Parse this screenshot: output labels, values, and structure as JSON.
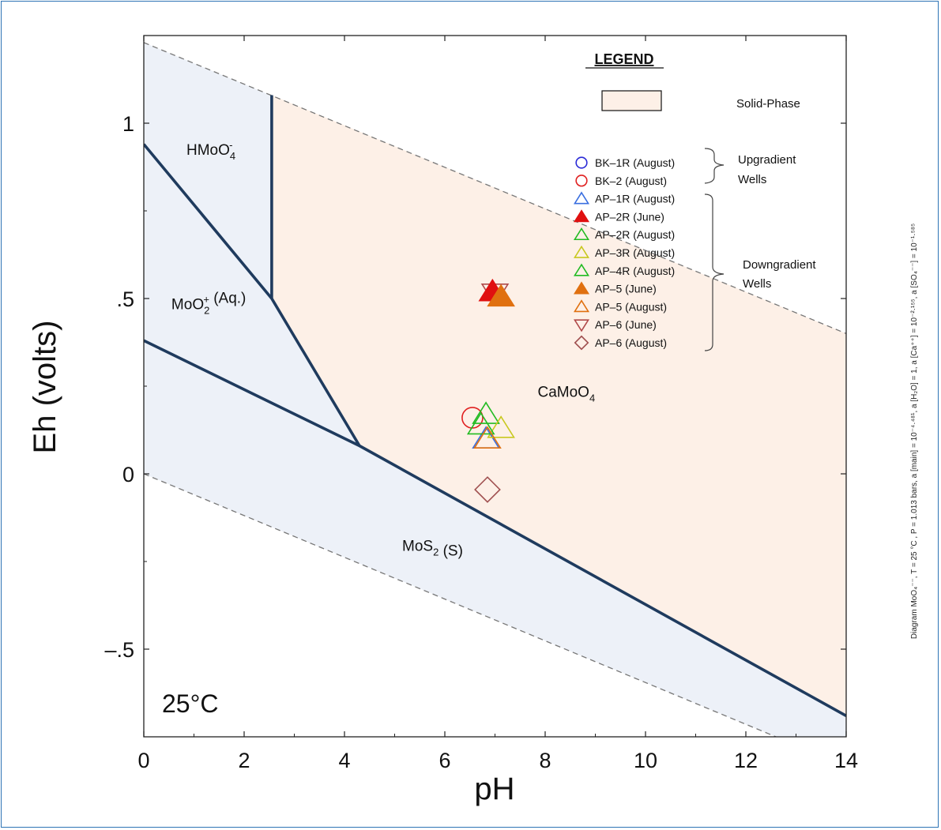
{
  "colors": {
    "frame": "#2e74b5",
    "aqueous_fill": "#edf1f8",
    "solid_fill": "#fdf0e7",
    "boundary": "#1f3b5e",
    "stability_limit": "#777777"
  },
  "chart_data": {
    "type": "scatter",
    "title": "",
    "xlabel": "pH",
    "ylabel": "Eh (volts)",
    "xlim": [
      0,
      14
    ],
    "ylim": [
      -0.75,
      1.25
    ],
    "x_ticks": [
      0,
      2,
      4,
      6,
      8,
      10,
      12,
      14
    ],
    "x_tick_labels": [
      "0",
      "2",
      "4",
      "6",
      "8",
      "10",
      "12",
      "14"
    ],
    "y_ticks": [
      1,
      0.5,
      0,
      -0.5
    ],
    "y_tick_labels": [
      "1",
      ".5",
      "0",
      "–.5"
    ],
    "grid": false,
    "temperature_label": "25°C",
    "water_stability_lines": [
      {
        "points": [
          [
            0,
            1.23
          ],
          [
            14,
            0.4
          ]
        ]
      },
      {
        "points": [
          [
            0,
            0.0
          ],
          [
            12.6,
            -0.75
          ]
        ]
      }
    ],
    "phase_boundaries": [
      {
        "points": [
          [
            2.55,
            1.08
          ],
          [
            2.55,
            0.5
          ]
        ]
      },
      {
        "points": [
          [
            0,
            0.94
          ],
          [
            2.55,
            0.5
          ],
          [
            4.3,
            0.08
          ]
        ]
      },
      {
        "points": [
          [
            0,
            0.38
          ],
          [
            4.3,
            0.08
          ],
          [
            14,
            -0.69
          ]
        ]
      }
    ],
    "solid_phase_polygon": [
      [
        2.55,
        1.08
      ],
      [
        2.55,
        0.5
      ],
      [
        4.3,
        0.08
      ],
      [
        14,
        -0.69
      ],
      [
        14,
        0.4
      ]
    ],
    "regions": [
      {
        "label_main": "HMoO",
        "sub": "4",
        "sup": "-",
        "tail": "",
        "pH": 0.85,
        "Eh": 0.91
      },
      {
        "label_main": "MoO",
        "sub": "2",
        "sup": "+",
        "tail": " (Aq.)",
        "pH": 0.55,
        "Eh": 0.47
      },
      {
        "label_main": "CaMoO",
        "sub": "4",
        "sup": "",
        "tail": "",
        "pH": 7.85,
        "Eh": 0.22
      },
      {
        "label_main": "MoS",
        "sub": "2",
        "sup": "",
        "tail": " (S)",
        "pH": 5.15,
        "Eh": -0.22
      }
    ],
    "legend": {
      "title": "LEGEND",
      "solid_phase_label": "Solid-Phase",
      "groups": [
        {
          "label_lines": [
            "Upgradient",
            "Wells"
          ]
        },
        {
          "label_lines": [
            "Downgradient",
            "Wells"
          ]
        }
      ]
    },
    "series": [
      {
        "name": "BK–1R (August)",
        "marker": "circle",
        "color": "#2b2bd6",
        "filled": false,
        "points": []
      },
      {
        "name": "BK–2 (August)",
        "marker": "circle",
        "color": "#e02020",
        "filled": false,
        "points": [
          [
            6.55,
            0.16
          ]
        ]
      },
      {
        "name": "AP–1R (August)",
        "marker": "triangle-up",
        "color": "#3a6fe0",
        "filled": false,
        "points": [
          [
            6.82,
            0.1
          ]
        ]
      },
      {
        "name": "AP–2R (June)",
        "marker": "triangle-up",
        "color": "#e01010",
        "filled": true,
        "points": [
          [
            6.95,
            0.52
          ]
        ]
      },
      {
        "name": "AP–2R (August)",
        "marker": "triangle-up",
        "color": "#22bb22",
        "filled": false,
        "points": [
          [
            6.82,
            0.17
          ]
        ]
      },
      {
        "name": "AP–3R (August)",
        "marker": "triangle-up",
        "color": "#c8c820",
        "filled": false,
        "points": [
          [
            7.12,
            0.13
          ]
        ]
      },
      {
        "name": "AP–4R (August)",
        "marker": "triangle-up",
        "color": "#22bb22",
        "filled": false,
        "points": [
          [
            6.72,
            0.14
          ]
        ]
      },
      {
        "name": "AP–5 (June)",
        "marker": "triangle-up",
        "color": "#e07010",
        "filled": true,
        "points": [
          [
            7.12,
            0.505
          ]
        ]
      },
      {
        "name": "AP–5 (August)",
        "marker": "triangle-up",
        "color": "#e07010",
        "filled": false,
        "points": [
          [
            6.85,
            0.1
          ]
        ]
      },
      {
        "name": "AP–6 (June)",
        "marker": "triangle-down",
        "color": "#b04a4a",
        "filled": false,
        "points": [
          [
            7.0,
            0.515
          ]
        ]
      },
      {
        "name": "AP–6 (August)",
        "marker": "diamond",
        "color": "#a05050",
        "filled": false,
        "points": [
          [
            6.85,
            -0.045
          ]
        ]
      }
    ],
    "side_caption": "Diagram MoO₄⁻⁻, T = 25 °C , P = 1.013 bars, a [main] = 10⁻⁴·⁴⁸¹, a [H₂O] = 1, a [Ca⁺⁺] = 10⁻²·¹⁵⁵, a [SO₄⁻⁻] = 10⁻¹·⁵⁸⁵"
  }
}
